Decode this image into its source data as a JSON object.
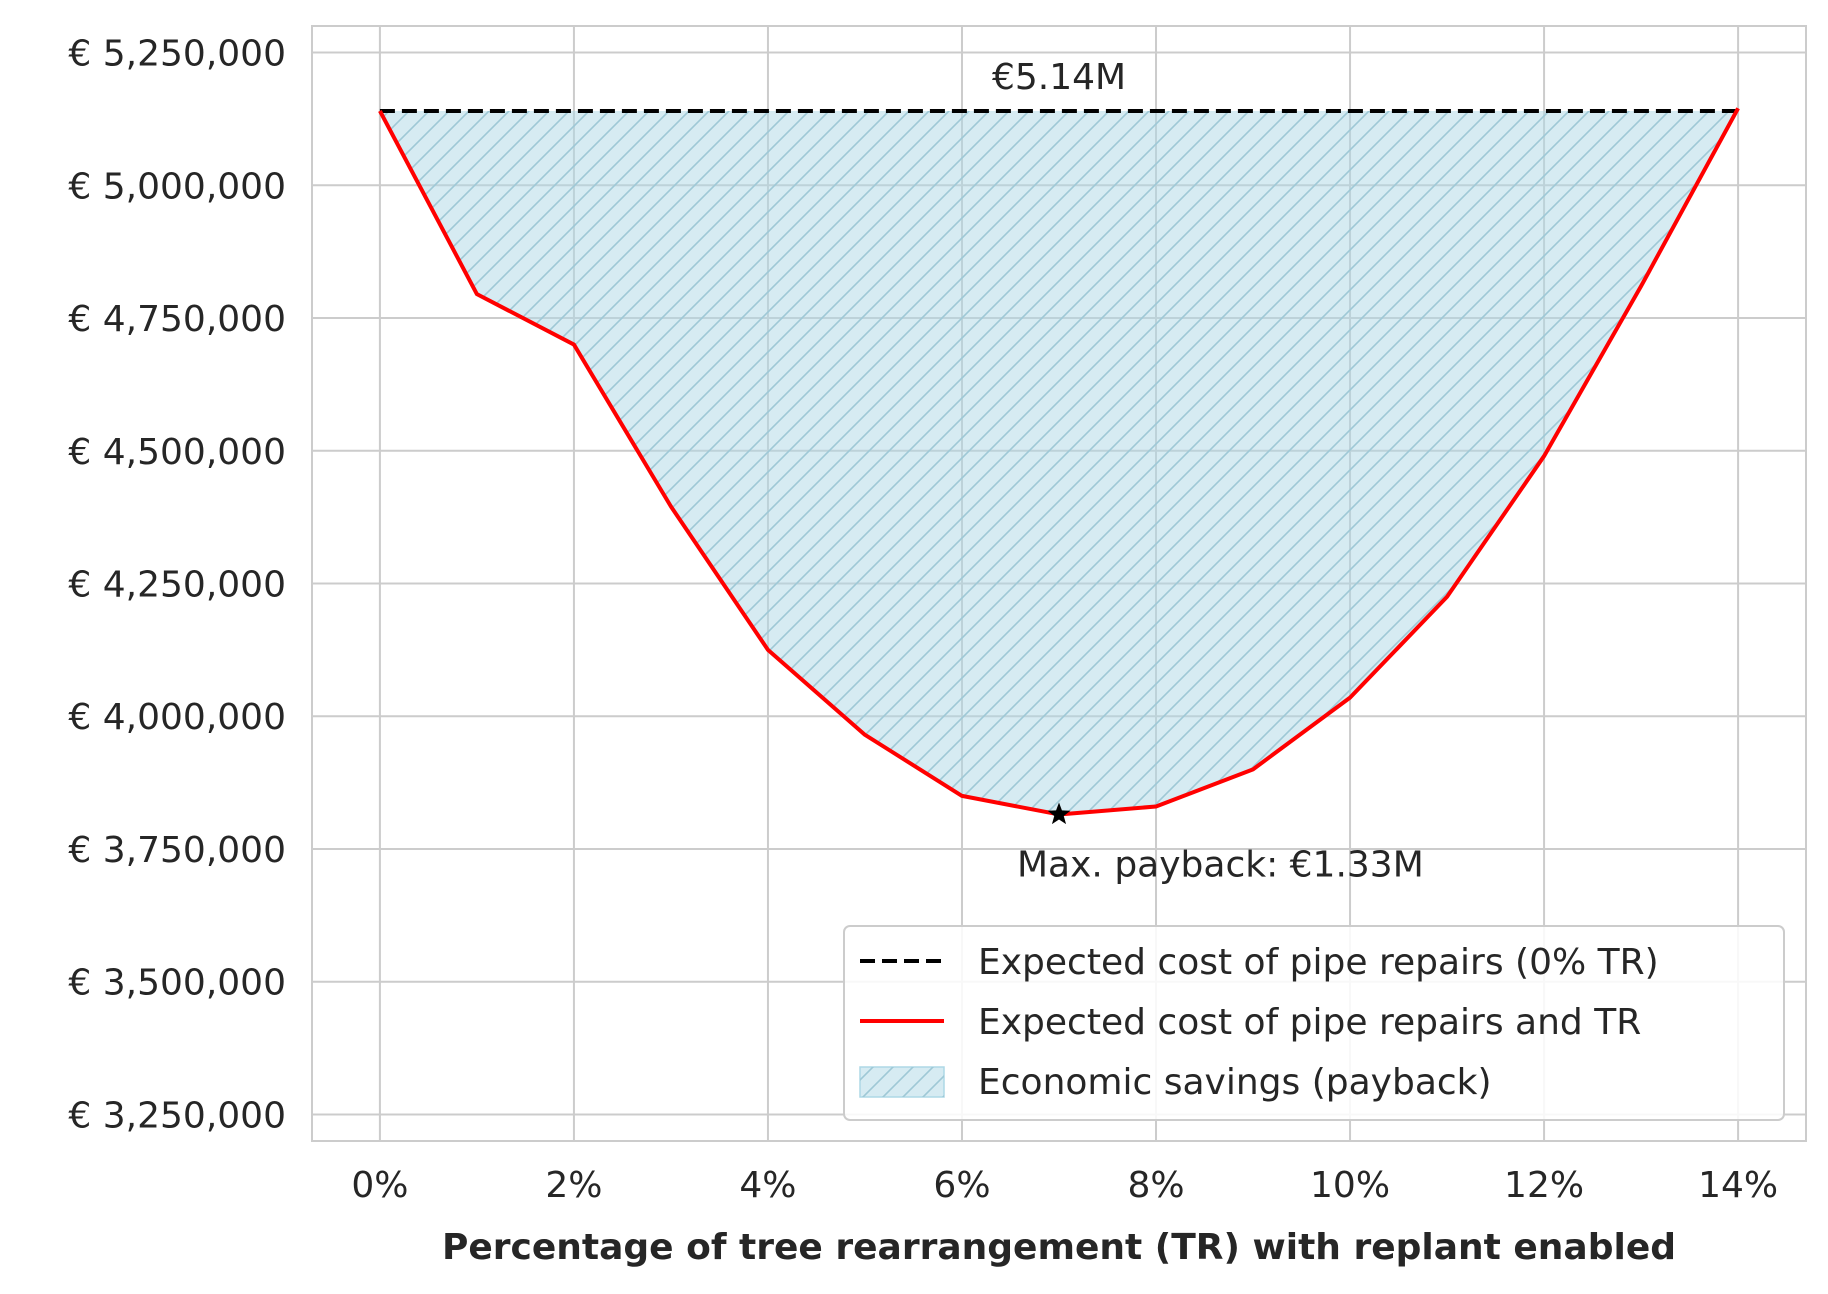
{
  "chart_data": {
    "type": "area",
    "title": "",
    "xlabel": "Percentage of tree rearrangement (TR) with replant enabled",
    "ylabel": "",
    "x": [
      0,
      1,
      2,
      3,
      4,
      5,
      6,
      7,
      8,
      9,
      10,
      11,
      12,
      13,
      14
    ],
    "xlim": [
      -0.7,
      14.7
    ],
    "ylim": [
      3200000,
      5300000
    ],
    "x_ticks": [
      0,
      2,
      4,
      6,
      8,
      10,
      12,
      14
    ],
    "x_tick_labels": [
      "0%",
      "2%",
      "4%",
      "6%",
      "8%",
      "10%",
      "12%",
      "14%"
    ],
    "y_ticks": [
      3250000,
      3500000,
      3750000,
      4000000,
      4250000,
      4500000,
      4750000,
      5000000,
      5250000
    ],
    "y_tick_labels": [
      "€ 3,250,000",
      "€ 3,500,000",
      "€ 3,750,000",
      "€ 4,000,000",
      "€ 4,250,000",
      "€ 4,500,000",
      "€ 4,750,000",
      "€ 5,000,000",
      "€ 5,250,000"
    ],
    "grid": true,
    "legend_position": "lower-right",
    "series": [
      {
        "name": "Expected cost of pipe repairs (0% TR)",
        "style": "dashed",
        "color": "#000000",
        "values": [
          5140000,
          5140000,
          5140000,
          5140000,
          5140000,
          5140000,
          5140000,
          5140000,
          5140000,
          5140000,
          5140000,
          5140000,
          5140000,
          5140000,
          5140000
        ]
      },
      {
        "name": "Expected cost of pipe repairs and TR",
        "style": "solid",
        "color": "#ff0000",
        "values": [
          5140000,
          4795000,
          4700000,
          4395000,
          4125000,
          3965000,
          3850000,
          3815000,
          3830000,
          3900000,
          4035000,
          4225000,
          4490000,
          4810000,
          5145000
        ]
      },
      {
        "name": "Economic savings (payback)",
        "style": "hatched-fill",
        "color": "#add8e6"
      }
    ],
    "min_point": {
      "x": 7,
      "y": 3815000
    },
    "annotations": [
      {
        "text": "€5.14M",
        "x": 7,
        "y": 5140000
      },
      {
        "text": "Max. payback: €1.33M",
        "x": 7,
        "y": 3815000
      }
    ]
  }
}
